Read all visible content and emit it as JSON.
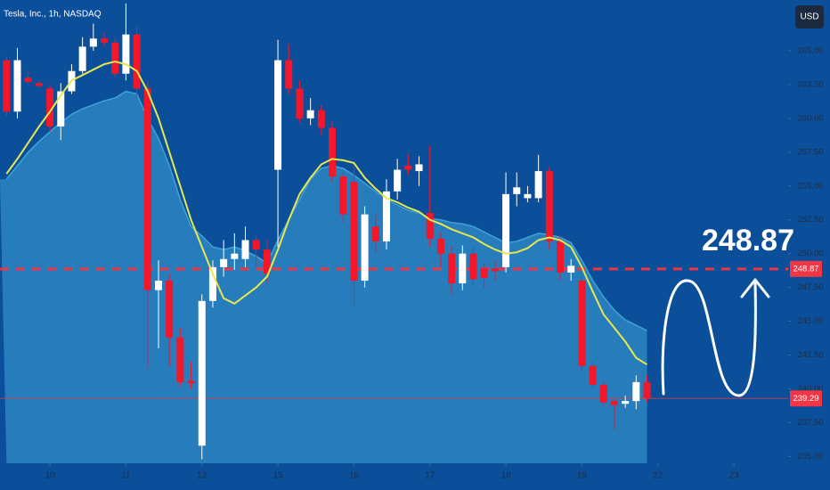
{
  "chart_data": {
    "type": "candlestick",
    "title": "Tesla, Inc., 1h, NASDAQ",
    "currency": "USD",
    "up_color": "#ffffff",
    "down_color": "#f2172b",
    "open": [
      264.3,
      260.5,
      263,
      262.6,
      262.2,
      259.4,
      262,
      263.5,
      265.3,
      265.9,
      265.6,
      263.3,
      266.2,
      262.2,
      247.3,
      248,
      243.8,
      240.6,
      235.8,
      246.5,
      249,
      249.6,
      249.6,
      251,
      250.3,
      256.2,
      264.3,
      262.2,
      260,
      260.6,
      259.3,
      255.7,
      255.3,
      248,
      252,
      250.9,
      254.6,
      256.5,
      256.1,
      253,
      251.1,
      250,
      247.8,
      250,
      248.9,
      248.9,
      249,
      254.4,
      254.1,
      254.1,
      256.1,
      250.9,
      248.6,
      248,
      241.7,
      240.3,
      239.1,
      238.9,
      239.1,
      240.5
    ],
    "high": [
      264.6,
      265.2,
      263.5,
      262.8,
      262.5,
      262.6,
      264,
      266,
      267,
      266.3,
      266,
      268.5,
      266.8,
      262.8,
      249.5,
      248.5,
      244.5,
      242,
      247,
      249.5,
      251,
      251.5,
      252,
      251.3,
      251,
      265.8,
      265.5,
      262.8,
      261.5,
      261,
      259.8,
      256,
      256.5,
      253.5,
      253,
      255.5,
      257,
      257.3,
      257.2,
      258,
      251.6,
      250.6,
      250.6,
      250.5,
      249.3,
      249.5,
      256,
      256,
      255,
      257.3,
      256.4,
      251.3,
      249.6,
      248.3,
      242,
      240.6,
      239.3,
      239.5,
      241,
      241
    ],
    "low": [
      260.2,
      260,
      262.5,
      262.2,
      259,
      258.4,
      261.8,
      263.3,
      265,
      265.3,
      263,
      262.8,
      261.5,
      241.5,
      243,
      241.7,
      240.2,
      240,
      234.8,
      246,
      248.3,
      248.8,
      249,
      249,
      247.8,
      250.5,
      261.8,
      259.7,
      259.5,
      258.8,
      255.3,
      252.3,
      246,
      247.5,
      250,
      250.3,
      254,
      255.8,
      255,
      250.5,
      249,
      247,
      247.3,
      247.6,
      247.5,
      248,
      248.6,
      253.5,
      253.8,
      253.8,
      250.3,
      248,
      248,
      241.3,
      240,
      238.7,
      237,
      238.6,
      238.5,
      239
    ],
    "close": [
      260.5,
      264.3,
      262.7,
      262.4,
      259.4,
      262,
      263.5,
      265.3,
      265.9,
      265.6,
      263.3,
      266.2,
      262.2,
      247.3,
      248,
      243.8,
      240.5,
      240.4,
      246.5,
      249,
      249.6,
      250,
      251,
      250.3,
      248.5,
      264.3,
      262.2,
      260,
      260.6,
      259.3,
      255.7,
      252.9,
      248,
      252.9,
      250.9,
      254.6,
      256.2,
      256.2,
      256.6,
      251.1,
      250,
      247.8,
      250,
      248.1,
      248.2,
      248.7,
      254.4,
      254.9,
      254.4,
      256.1,
      250.9,
      248.6,
      249.1,
      241.7,
      240.3,
      239,
      238.8,
      239.1,
      240.5,
      239.3
    ],
    "overlays": [
      {
        "kind": "area",
        "color": "#3fa3d6",
        "values": [
          255.5,
          256.5,
          257.5,
          258.3,
          259,
          259.7,
          260.3,
          260.7,
          261,
          261.3,
          261.5,
          262,
          261.8,
          260,
          258.5,
          256.5,
          254,
          252,
          251.3,
          250.5,
          250.3,
          250.5,
          250.2,
          249.8,
          249.3,
          251,
          252.5,
          254,
          255.5,
          256.3,
          256.5,
          256.3,
          255.8,
          255.2,
          254.6,
          254,
          253.6,
          253.2,
          253,
          252.6,
          252.5,
          252.3,
          252.2,
          252,
          251.6,
          251.2,
          250.8,
          250.9,
          251.2,
          251.5,
          251.4,
          251.2,
          250.8,
          249.5,
          248,
          246.8,
          245.8,
          245.1,
          244.7,
          244.3
        ]
      },
      {
        "kind": "line",
        "color": "#e6e84f",
        "values": [
          255.9,
          257,
          258.2,
          259.4,
          260.5,
          261.7,
          262.8,
          263.2,
          263.6,
          264,
          264.2,
          264,
          263.5,
          262,
          260,
          257.5,
          255,
          252.5,
          250.5,
          248.5,
          246.7,
          246.3,
          246.9,
          247.5,
          248.3,
          250.3,
          252.5,
          254.4,
          255.6,
          256.6,
          257,
          256.9,
          256.7,
          255.6,
          254.8,
          254.1,
          253.8,
          253.4,
          253.1,
          252.5,
          252.2,
          251.8,
          251.5,
          251.2,
          250.7,
          250.3,
          250,
          250.1,
          250.4,
          251,
          251.2,
          251,
          250.5,
          249,
          247.2,
          245.5,
          244.5,
          243.5,
          242.3,
          241.8
        ]
      }
    ],
    "price_lines": [
      {
        "value": 248.87,
        "color": "#f23645",
        "style": "dashed"
      },
      {
        "value": 239.29,
        "color": "#f23645",
        "style": "solid"
      }
    ],
    "annotation": "248.87",
    "xlim": [
      -0.6,
      72
    ],
    "xticks": [
      {
        "value": 4,
        "label": "10"
      },
      {
        "value": 11,
        "label": "11"
      },
      {
        "value": 18,
        "label": "12"
      },
      {
        "value": 25,
        "label": "15"
      },
      {
        "value": 32,
        "label": "16"
      },
      {
        "value": 39,
        "label": "17"
      },
      {
        "value": 46,
        "label": "18"
      },
      {
        "value": 53,
        "label": "19"
      },
      {
        "value": 60,
        "label": "22"
      },
      {
        "value": 67,
        "label": "23"
      }
    ],
    "ylim": [
      234.5,
      268.75
    ],
    "yticks": [
      {
        "value": 235,
        "label": "235.00"
      },
      {
        "value": 237.5,
        "label": "237.50"
      },
      {
        "value": 240,
        "label": "240.00"
      },
      {
        "value": 242.5,
        "label": "242.50"
      },
      {
        "value": 245,
        "label": "245.00"
      },
      {
        "value": 247.5,
        "label": "247.50"
      },
      {
        "value": 250,
        "label": "250.00"
      },
      {
        "value": 252.5,
        "label": "252.50"
      },
      {
        "value": 255,
        "label": "255.00"
      },
      {
        "value": 257.5,
        "label": "257.50"
      },
      {
        "value": 260,
        "label": "260.00"
      },
      {
        "value": 262.5,
        "label": "262.50"
      },
      {
        "value": 265,
        "label": "265.00"
      }
    ]
  }
}
